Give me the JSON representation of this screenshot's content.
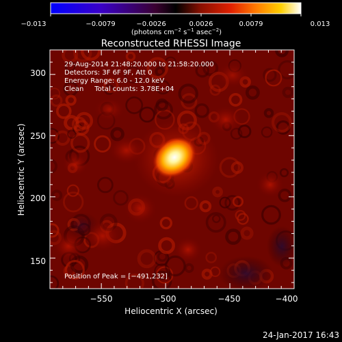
{
  "chart_data": {
    "type": "heatmap",
    "title": "Reconstructed RHESSI Image",
    "xlabel": "Heliocentric X (arcsec)",
    "ylabel": "Heliocentric Y (arcsec)",
    "xlim": [
      -590,
      -400
    ],
    "ylim": [
      125,
      320
    ],
    "x_ticks": [
      -550,
      -500,
      -450,
      -400
    ],
    "x_tick_labels": [
      "−550",
      "−500",
      "−450",
      "−400"
    ],
    "y_ticks": [
      150,
      200,
      250,
      300
    ],
    "y_tick_labels": [
      "150",
      "200",
      "250",
      "300"
    ],
    "colorbar": {
      "range": [
        -0.013,
        0.013
      ],
      "ticks": [
        -0.013,
        -0.0079,
        -0.0026,
        0.0026,
        0.0079,
        0.013
      ],
      "tick_labels": [
        "−0.013",
        "−0.0079",
        "−0.0026",
        "0.0026",
        "0.0079",
        "0.013"
      ],
      "units_text": "(photons cm",
      "units_exp1": "−2",
      "units_mid": " s",
      "units_exp2": "−1",
      "units_mid2": " asec",
      "units_exp3": "−2",
      "units_end": ")"
    },
    "info_lines": [
      "29-Aug-2014 21:48:20.000 to 21:58:20.000",
      "Detectors: 3F 6F 9F, Att 0",
      "Energy Range: 6.0 - 12.0 keV",
      "Clean     Total counts: 3.78E+04"
    ],
    "peak_label": "Position of Peak = [−491,232]",
    "peak": [
      -491,
      232
    ],
    "grid": false,
    "legend": "colorbar-top"
  },
  "footer_date": "24-Jan-2017 16:43"
}
